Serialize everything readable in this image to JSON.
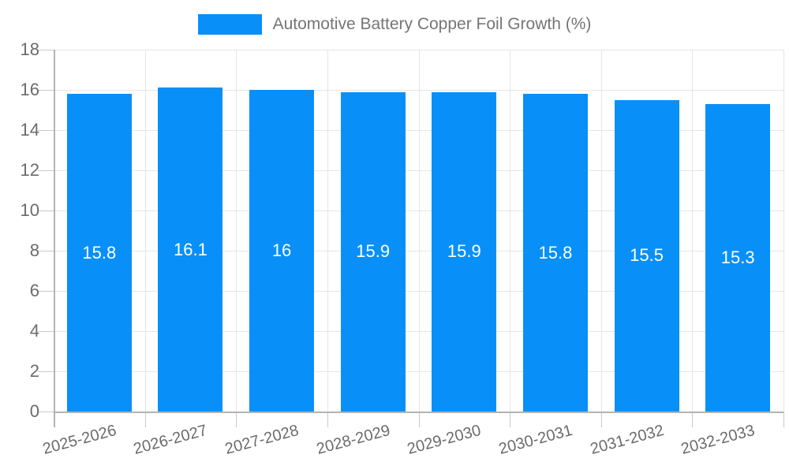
{
  "legend": {
    "label": "Automotive Battery Copper Foil Growth (%)"
  },
  "colors": {
    "bar": "#0890F8",
    "bar_label": "#ffffff",
    "gridline": "#e6e6e6",
    "axis_line": "#b3b3b3",
    "tick": "#c9c9c9",
    "axis_text": "#6b6b6b",
    "legend_text": "#757575"
  },
  "chart_data": {
    "type": "bar",
    "title": "Automotive Battery Copper Foil Growth (%)",
    "categories": [
      "2025-2026",
      "2026-2027",
      "2027-2028",
      "2028-2029",
      "2029-2030",
      "2030-2031",
      "2031-2032",
      "2032-2033"
    ],
    "values": [
      15.8,
      16.1,
      16,
      15.9,
      15.9,
      15.8,
      15.5,
      15.3
    ],
    "value_labels": [
      "15.8",
      "16.1",
      "16",
      "15.9",
      "15.9",
      "15.8",
      "15.5",
      "15.3"
    ],
    "xlabel": "",
    "ylabel": "",
    "ylim": [
      0,
      18
    ],
    "yticks": [
      0,
      2,
      4,
      6,
      8,
      10,
      12,
      14,
      16,
      18
    ],
    "grid": true,
    "legend_position": "top",
    "bar_color": "#0890F8",
    "value_label_position": "center-inside"
  }
}
